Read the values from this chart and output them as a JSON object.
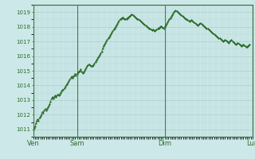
{
  "bg_color": "#cce8e8",
  "plot_bg_color": "#cce8e8",
  "line_color": "#2d6e2d",
  "marker_color": "#2d6e2d",
  "grid_major_color": "#a8c8c8",
  "grid_minor_color": "#b8d8d8",
  "axis_color": "#2d6e2d",
  "tick_color": "#2d6e2d",
  "label_color": "#2d6e2d",
  "vline_color": "#4a7a4a",
  "ylim": [
    1010.5,
    1019.5
  ],
  "yticks": [
    1011,
    1012,
    1013,
    1014,
    1015,
    1016,
    1017,
    1018,
    1019
  ],
  "xtick_labels": [
    "Ven",
    "Sam",
    "Dim",
    "Lun"
  ],
  "xtick_positions": [
    0,
    48,
    144,
    240
  ],
  "vline_positions": [
    0,
    48,
    144,
    240
  ],
  "y_values": [
    1011.0,
    1011.1,
    1011.2,
    1011.4,
    1011.6,
    1011.7,
    1011.6,
    1011.8,
    1011.9,
    1012.0,
    1012.2,
    1012.1,
    1012.3,
    1012.4,
    1012.3,
    1012.4,
    1012.5,
    1012.6,
    1012.7,
    1012.9,
    1013.1,
    1013.2,
    1013.1,
    1013.2,
    1013.3,
    1013.2,
    1013.3,
    1013.4,
    1013.3,
    1013.4,
    1013.5,
    1013.6,
    1013.7,
    1013.7,
    1013.8,
    1013.9,
    1014.0,
    1014.1,
    1014.2,
    1014.3,
    1014.4,
    1014.5,
    1014.6,
    1014.5,
    1014.6,
    1014.7,
    1014.8,
    1014.7,
    1014.8,
    1014.9,
    1014.95,
    1015.0,
    1015.1,
    1014.95,
    1014.85,
    1014.9,
    1015.0,
    1015.1,
    1015.2,
    1015.3,
    1015.4,
    1015.45,
    1015.4,
    1015.35,
    1015.3,
    1015.35,
    1015.4,
    1015.5,
    1015.6,
    1015.7,
    1015.8,
    1015.9,
    1016.0,
    1016.1,
    1016.2,
    1016.3,
    1016.5,
    1016.7,
    1016.8,
    1016.9,
    1017.0,
    1017.1,
    1017.2,
    1017.3,
    1017.4,
    1017.5,
    1017.6,
    1017.7,
    1017.8,
    1017.9,
    1018.0,
    1018.1,
    1018.2,
    1018.3,
    1018.4,
    1018.5,
    1018.55,
    1018.6,
    1018.65,
    1018.6,
    1018.55,
    1018.5,
    1018.55,
    1018.6,
    1018.65,
    1018.7,
    1018.75,
    1018.8,
    1018.85,
    1018.8,
    1018.75,
    1018.7,
    1018.65,
    1018.6,
    1018.55,
    1018.5,
    1018.45,
    1018.4,
    1018.35,
    1018.3,
    1018.25,
    1018.2,
    1018.15,
    1018.1,
    1018.05,
    1018.0,
    1017.95,
    1017.9,
    1017.85,
    1017.8,
    1017.75,
    1017.8,
    1017.75,
    1017.7,
    1017.75,
    1017.8,
    1017.85,
    1017.9,
    1017.95,
    1018.0,
    1018.05,
    1018.0,
    1017.95,
    1017.9,
    1018.0,
    1018.1,
    1018.2,
    1018.3,
    1018.4,
    1018.5,
    1018.6,
    1018.7,
    1018.8,
    1018.9,
    1019.0,
    1019.05,
    1019.1,
    1019.05,
    1019.0,
    1018.95,
    1018.9,
    1018.85,
    1018.8,
    1018.75,
    1018.7,
    1018.65,
    1018.6,
    1018.55,
    1018.5,
    1018.45,
    1018.4,
    1018.35,
    1018.4,
    1018.45,
    1018.4,
    1018.35,
    1018.3,
    1018.25,
    1018.2,
    1018.15,
    1018.1,
    1018.15,
    1018.2,
    1018.25,
    1018.2,
    1018.15,
    1018.1,
    1018.05,
    1018.0,
    1017.95,
    1017.9,
    1017.85,
    1017.8,
    1017.75,
    1017.7,
    1017.65,
    1017.6,
    1017.55,
    1017.5,
    1017.45,
    1017.4,
    1017.35,
    1017.3,
    1017.25,
    1017.2,
    1017.15,
    1017.1,
    1017.05,
    1017.0,
    1017.05,
    1017.1,
    1017.05,
    1017.0,
    1016.95,
    1016.9,
    1017.0,
    1017.05,
    1017.1,
    1017.0,
    1016.95,
    1016.9,
    1016.85,
    1016.8,
    1016.85,
    1016.9,
    1016.85,
    1016.8,
    1016.75,
    1016.7,
    1016.75,
    1016.8,
    1016.75,
    1016.7,
    1016.65,
    1016.6,
    1016.7,
    1016.75,
    1016.8
  ]
}
